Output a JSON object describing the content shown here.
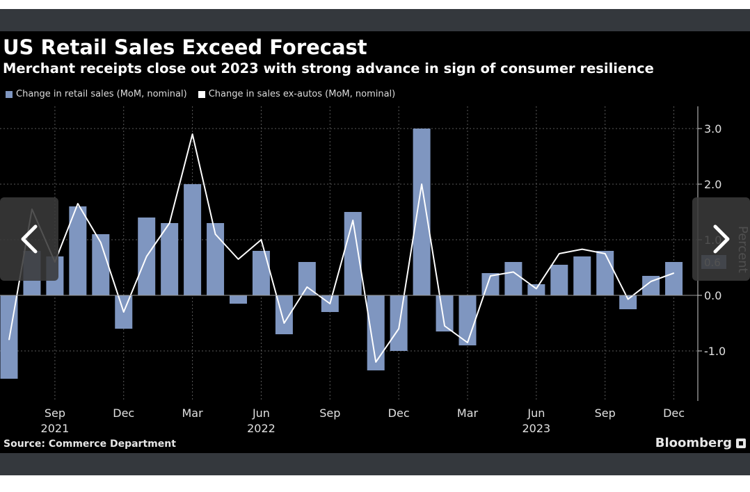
{
  "title": "US Retail Sales Exceed Forecast",
  "subtitle": "Merchant receipts close out 2023 with strong advance in sign of consumer resilience",
  "source": "Source: Commerce Department",
  "brand": "Bloomberg",
  "colors": {
    "bar": "#7f96c0",
    "line": "#ffffff",
    "background": "#000000",
    "grid": "#5a5a5a",
    "highlight_label": "#7f96c0"
  },
  "chart_data": {
    "type": "bar",
    "series": [
      {
        "name": "Change in retail sales (MoM, nominal)",
        "type": "bar",
        "x": [
          "2021-07",
          "2021-08",
          "2021-09",
          "2021-10",
          "2021-11",
          "2021-12",
          "2022-01",
          "2022-02",
          "2022-03",
          "2022-04",
          "2022-05",
          "2022-06",
          "2022-07",
          "2022-08",
          "2022-09",
          "2022-10",
          "2022-11",
          "2022-12",
          "2023-01",
          "2023-02",
          "2023-03",
          "2023-04",
          "2023-05",
          "2023-06",
          "2023-07",
          "2023-08",
          "2023-09",
          "2023-10",
          "2023-11",
          "2023-12"
        ],
        "values": [
          -1.5,
          0.8,
          0.7,
          1.6,
          1.1,
          -0.6,
          1.4,
          1.3,
          2.0,
          1.3,
          -0.15,
          0.8,
          -0.7,
          0.6,
          -0.3,
          1.5,
          -1.35,
          -1.0,
          3.0,
          -0.65,
          -0.9,
          0.4,
          0.6,
          0.2,
          0.55,
          0.7,
          0.8,
          -0.25,
          0.35,
          0.6
        ]
      },
      {
        "name": "Change in sales ex-autos (MoM, nominal)",
        "type": "line",
        "x": [
          "2021-07",
          "2021-08",
          "2021-09",
          "2021-10",
          "2021-11",
          "2021-12",
          "2022-01",
          "2022-02",
          "2022-03",
          "2022-04",
          "2022-05",
          "2022-06",
          "2022-07",
          "2022-08",
          "2022-09",
          "2022-10",
          "2022-11",
          "2022-12",
          "2023-01",
          "2023-02",
          "2023-03",
          "2023-04",
          "2023-05",
          "2023-06",
          "2023-07",
          "2023-08",
          "2023-09",
          "2023-10",
          "2023-11",
          "2023-12"
        ],
        "values": [
          -0.8,
          1.55,
          0.6,
          1.65,
          0.95,
          -0.3,
          0.7,
          1.3,
          2.9,
          1.1,
          0.65,
          1.0,
          -0.5,
          0.15,
          -0.15,
          1.35,
          -1.2,
          -0.6,
          2.0,
          -0.55,
          -0.85,
          0.35,
          0.42,
          0.12,
          0.75,
          0.83,
          0.75,
          -0.07,
          0.25,
          0.4
        ]
      }
    ],
    "x_ticks": [
      {
        "x": "2021-09",
        "month": "Sep",
        "year": "2021"
      },
      {
        "x": "2021-12",
        "month": "Dec",
        "year": ""
      },
      {
        "x": "2022-03",
        "month": "Mar",
        "year": ""
      },
      {
        "x": "2022-06",
        "month": "Jun",
        "year": "2022"
      },
      {
        "x": "2022-09",
        "month": "Sep",
        "year": ""
      },
      {
        "x": "2022-12",
        "month": "Dec",
        "year": ""
      },
      {
        "x": "2023-03",
        "month": "Mar",
        "year": ""
      },
      {
        "x": "2023-06",
        "month": "Jun",
        "year": "2023"
      },
      {
        "x": "2023-09",
        "month": "Sep",
        "year": ""
      },
      {
        "x": "2023-12",
        "month": "Dec",
        "year": ""
      }
    ],
    "y_ticks": [
      {
        "value": 3.0,
        "label": "3.0"
      },
      {
        "value": 2.0,
        "label": "2.0"
      },
      {
        "value": 1.0,
        "label": "1.0"
      },
      {
        "value": 0.0,
        "label": "0.0"
      },
      {
        "value": -1.0,
        "label": "-1.0"
      }
    ],
    "ylim": [
      -1.9,
      3.4
    ],
    "ylabel": "Percent",
    "highlight_labels": [
      {
        "value": 0.6,
        "label": "0.6"
      }
    ],
    "grid": true,
    "legend_position": "top-left"
  },
  "nav": {
    "prev_icon": "chevron-left-icon",
    "next_icon": "chevron-right-icon"
  }
}
